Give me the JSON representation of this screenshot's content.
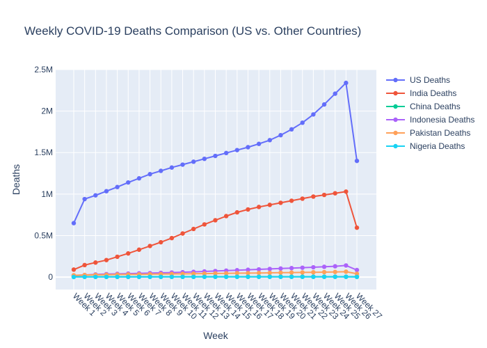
{
  "chart_data": {
    "type": "line",
    "title": "Weekly COVID-19 Deaths Comparison (US vs. Other Countries)",
    "xlabel": "Week",
    "ylabel": "Deaths",
    "ylim": [
      -150000,
      2500000
    ],
    "y_ticks": [
      0,
      500000,
      1000000,
      1500000,
      2000000,
      2500000
    ],
    "y_tick_labels": [
      "0",
      "0.5M",
      "1M",
      "1.5M",
      "2M",
      "2.5M"
    ],
    "grid": true,
    "legend_placement": "top-right",
    "categories": [
      "Week 1",
      "Week 2",
      "Week 3",
      "Week 4",
      "Week 5",
      "Week 6",
      "Week 7",
      "Week 8",
      "Week 9",
      "Week 10",
      "Week 11",
      "Week 12",
      "Week 13",
      "Week 14",
      "Week 15",
      "Week 16",
      "Week 17",
      "Week 18",
      "Week 19",
      "Week 20",
      "Week 21",
      "Week 22",
      "Week 23",
      "Week 24",
      "Week 25",
      "Week 26",
      "Week 27"
    ],
    "series": [
      {
        "name": "US Deaths",
        "color": "#636efa",
        "values": [
          650000,
          940000,
          985000,
          1035000,
          1085000,
          1140000,
          1190000,
          1240000,
          1280000,
          1320000,
          1355000,
          1390000,
          1425000,
          1460000,
          1495000,
          1530000,
          1565000,
          1605000,
          1650000,
          1710000,
          1780000,
          1860000,
          1960000,
          2080000,
          2210000,
          2340000,
          1400000
        ]
      },
      {
        "name": "India Deaths",
        "color": "#ef553b",
        "values": [
          90000,
          145000,
          175000,
          205000,
          245000,
          285000,
          330000,
          375000,
          420000,
          470000,
          525000,
          580000,
          635000,
          685000,
          735000,
          780000,
          815000,
          845000,
          870000,
          895000,
          920000,
          945000,
          970000,
          990000,
          1010000,
          1030000,
          595000
        ]
      },
      {
        "name": "China Deaths",
        "color": "#00cc96",
        "values": [
          4600,
          4600,
          4600,
          4600,
          4600,
          4600,
          4600,
          4600,
          4600,
          4600,
          4600,
          4600,
          4600,
          4600,
          4600,
          4600,
          4600,
          4600,
          4600,
          4600,
          4600,
          4600,
          4600,
          4600,
          4600,
          4600,
          4600
        ]
      },
      {
        "name": "Indonesia Deaths",
        "color": "#ab63fa",
        "values": [
          20000,
          26000,
          32000,
          36000,
          39000,
          42000,
          45000,
          48000,
          51000,
          55000,
          59000,
          63000,
          68000,
          73000,
          78000,
          83000,
          88000,
          93000,
          98000,
          103000,
          108000,
          113000,
          118000,
          124000,
          130000,
          140000,
          85000
        ]
      },
      {
        "name": "Pakistan Deaths",
        "color": "#ffa15a",
        "values": [
          22000,
          25000,
          27000,
          29000,
          31000,
          32000,
          33000,
          35000,
          36000,
          38000,
          39000,
          41000,
          42000,
          44000,
          45000,
          47000,
          48000,
          50000,
          51000,
          53000,
          55000,
          56000,
          58000,
          60000,
          62000,
          65000,
          40000
        ]
      },
      {
        "name": "Nigeria Deaths",
        "color": "#19d3f3",
        "values": [
          1500,
          1600,
          1700,
          1800,
          1900,
          2000,
          2100,
          2200,
          2300,
          2400,
          2500,
          2600,
          2700,
          2800,
          2900,
          3000,
          3000,
          3000,
          3100,
          3100,
          3100,
          3100,
          3100,
          3100,
          3100,
          3100,
          2100
        ]
      }
    ]
  }
}
